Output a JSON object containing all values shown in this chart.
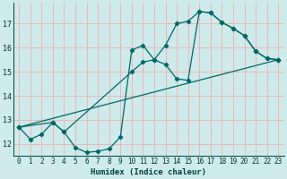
{
  "xlabel": "Humidex (Indice chaleur)",
  "bg_color": "#ceeaea",
  "grid_color": "#e8b8b8",
  "line_color": "#006868",
  "xlim": [
    -0.5,
    23.5
  ],
  "ylim": [
    11.5,
    17.85
  ],
  "yticks": [
    12,
    13,
    14,
    15,
    16,
    17
  ],
  "xticks": [
    0,
    1,
    2,
    3,
    4,
    5,
    6,
    7,
    8,
    9,
    10,
    11,
    12,
    13,
    14,
    15,
    16,
    17,
    18,
    19,
    20,
    21,
    22,
    23
  ],
  "curve1_x": [
    0,
    1,
    2,
    3,
    4,
    5,
    6,
    7,
    8,
    9,
    10,
    11,
    12,
    13,
    14,
    15,
    16,
    17,
    18,
    19,
    20,
    21,
    22,
    23
  ],
  "curve1_y": [
    12.7,
    12.2,
    12.4,
    12.9,
    12.5,
    11.85,
    11.65,
    11.7,
    11.8,
    12.3,
    15.9,
    16.1,
    15.5,
    15.3,
    14.7,
    14.65,
    17.5,
    17.45,
    17.05,
    16.8,
    16.5,
    15.85,
    15.55,
    15.5
  ],
  "curve2_x": [
    0,
    3,
    4,
    10,
    11,
    12,
    13,
    14,
    15,
    16,
    17,
    18,
    19,
    20,
    21,
    22,
    23
  ],
  "curve2_y": [
    12.7,
    12.9,
    12.5,
    15.0,
    15.4,
    15.5,
    16.1,
    17.0,
    17.1,
    17.5,
    17.45,
    17.05,
    16.8,
    16.5,
    15.85,
    15.55,
    15.5
  ],
  "curve3_x": [
    0,
    23
  ],
  "curve3_y": [
    12.7,
    15.5
  ]
}
